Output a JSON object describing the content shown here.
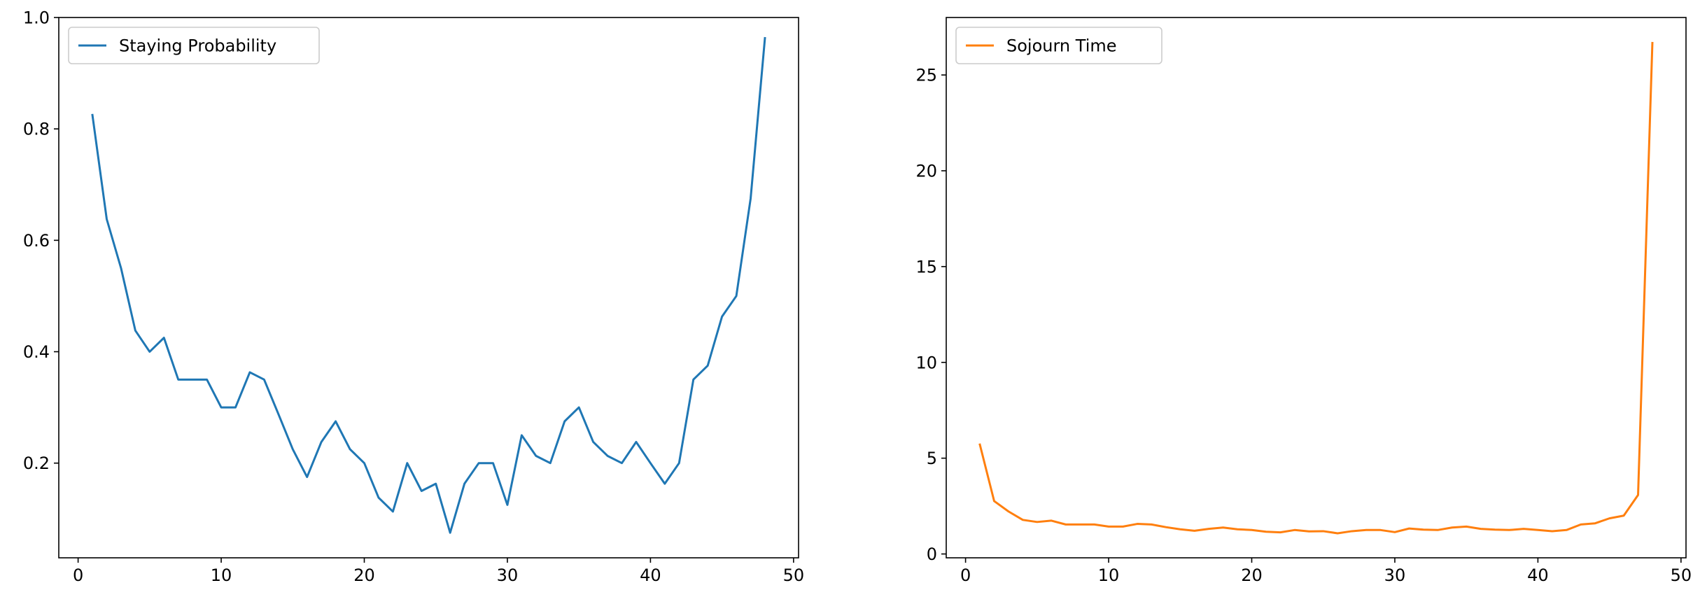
{
  "chart_data": [
    {
      "type": "line",
      "title": "",
      "xlabel": "",
      "ylabel": "",
      "xlim": [
        -1.35,
        50.35
      ],
      "ylim": [
        0.03,
        1.0
      ],
      "xticks": [
        0,
        10,
        20,
        30,
        40,
        50
      ],
      "yticks": [
        0.2,
        0.4,
        0.6,
        0.8,
        1.0
      ],
      "ytick_decimals": 1,
      "grid": false,
      "legend_position": "upper-left",
      "series": [
        {
          "name": "Staying Probability",
          "color": "#1f77b4",
          "x": [
            1,
            2,
            3,
            4,
            5,
            6,
            7,
            8,
            9,
            10,
            11,
            12,
            13,
            14,
            15,
            16,
            17,
            18,
            19,
            20,
            21,
            22,
            23,
            24,
            25,
            26,
            27,
            28,
            29,
            30,
            31,
            32,
            33,
            34,
            35,
            36,
            37,
            38,
            39,
            40,
            41,
            42,
            43,
            44,
            45,
            46,
            47,
            48
          ],
          "values": [
            0.825,
            0.638,
            0.55,
            0.438,
            0.4,
            0.425,
            0.35,
            0.35,
            0.35,
            0.3,
            0.3,
            0.363,
            0.35,
            0.288,
            0.225,
            0.175,
            0.238,
            0.275,
            0.225,
            0.2,
            0.138,
            0.113,
            0.2,
            0.15,
            0.163,
            0.075,
            0.163,
            0.2,
            0.2,
            0.125,
            0.25,
            0.213,
            0.2,
            0.275,
            0.3,
            0.238,
            0.213,
            0.2,
            0.238,
            0.2,
            0.163,
            0.2,
            0.35,
            0.375,
            0.463,
            0.5,
            0.675,
            0.963
          ]
        }
      ]
    },
    {
      "type": "line",
      "title": "",
      "xlabel": "",
      "ylabel": "",
      "xlim": [
        -1.35,
        50.35
      ],
      "ylim": [
        -0.2,
        28.0
      ],
      "xticks": [
        0,
        10,
        20,
        30,
        40,
        50
      ],
      "yticks": [
        0,
        5,
        10,
        15,
        20,
        25
      ],
      "ytick_decimals": 0,
      "grid": false,
      "legend_position": "upper-left",
      "series": [
        {
          "name": "Sojourn Time",
          "color": "#ff7f0e",
          "x": [
            1,
            2,
            3,
            4,
            5,
            6,
            7,
            8,
            9,
            10,
            11,
            12,
            13,
            14,
            15,
            16,
            17,
            18,
            19,
            20,
            21,
            22,
            23,
            24,
            25,
            26,
            27,
            28,
            29,
            30,
            31,
            32,
            33,
            34,
            35,
            36,
            37,
            38,
            39,
            40,
            41,
            42,
            43,
            44,
            45,
            46,
            47,
            48
          ],
          "values": [
            5.71,
            2.76,
            2.22,
            1.78,
            1.67,
            1.74,
            1.54,
            1.54,
            1.54,
            1.43,
            1.43,
            1.57,
            1.54,
            1.4,
            1.29,
            1.21,
            1.31,
            1.38,
            1.29,
            1.25,
            1.16,
            1.13,
            1.25,
            1.18,
            1.19,
            1.08,
            1.19,
            1.25,
            1.25,
            1.14,
            1.33,
            1.27,
            1.25,
            1.38,
            1.43,
            1.31,
            1.27,
            1.25,
            1.31,
            1.25,
            1.19,
            1.25,
            1.54,
            1.6,
            1.86,
            2.0,
            3.08,
            26.67
          ]
        }
      ]
    }
  ]
}
